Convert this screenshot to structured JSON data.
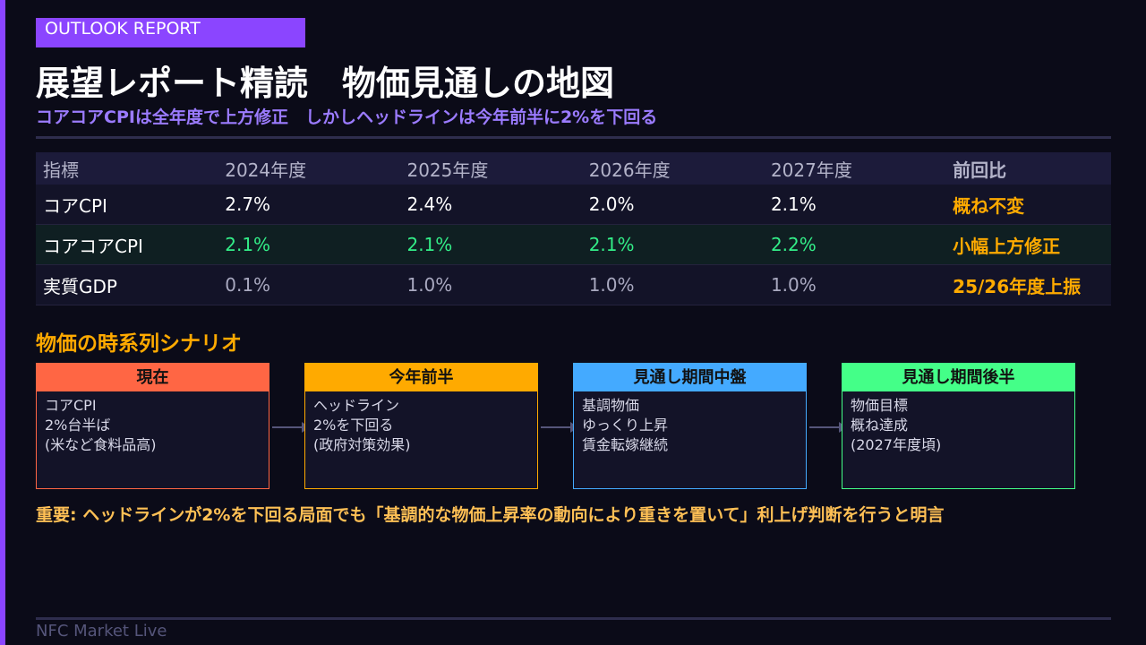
{
  "tag": "OUTLOOK REPORT",
  "title": "展望レポート精読　物価見通しの地図",
  "subtitle": "コアコアCPIは全年度で上方修正　しかしヘッドラインは今年前半に2%を下回る",
  "table": {
    "headers": [
      "指標",
      "2024年度",
      "2025年度",
      "2026年度",
      "2027年度",
      "前回比"
    ],
    "rows": [
      [
        "コアCPI",
        "2.7%",
        "2.4%",
        "2.0%",
        "2.1%",
        "概ね不変"
      ],
      [
        "コアコアCPI",
        "2.1%",
        "2.1%",
        "2.1%",
        "2.2%",
        "小幅上方修正"
      ],
      [
        "実質GDP",
        "0.1%",
        "1.0%",
        "1.0%",
        "1.0%",
        "25/26年度上振"
      ]
    ]
  },
  "section_title": "物価の時系列シナリオ",
  "scenario": [
    {
      "title": "現在",
      "lines": [
        "コアCPI",
        "2%台半ば",
        "(米など食料品高)"
      ],
      "color": "#ff6644"
    },
    {
      "title": "今年前半",
      "lines": [
        "ヘッドライン",
        "2%を下回る",
        "(政府対策効果)"
      ],
      "color": "#ffaa00"
    },
    {
      "title": "見通し期間中盤",
      "lines": [
        "基調物価",
        "ゆっくり上昇",
        "賃金転嫁継続"
      ],
      "color": "#44aaff"
    },
    {
      "title": "見通し期間後半",
      "lines": [
        "物価目標",
        "概ね達成",
        "(2027年度頃)"
      ],
      "color": "#44ff88"
    }
  ],
  "note": "重要: ヘッドラインが2%を下回る局面でも「基調的な物価上昇率の動向により重きを置いて」利上げ判断を行うと明言",
  "footer": "NFC Market Live",
  "colors": {
    "accent": "#8b45ff",
    "orange": "#ffaa00",
    "green": "#33ee88"
  }
}
